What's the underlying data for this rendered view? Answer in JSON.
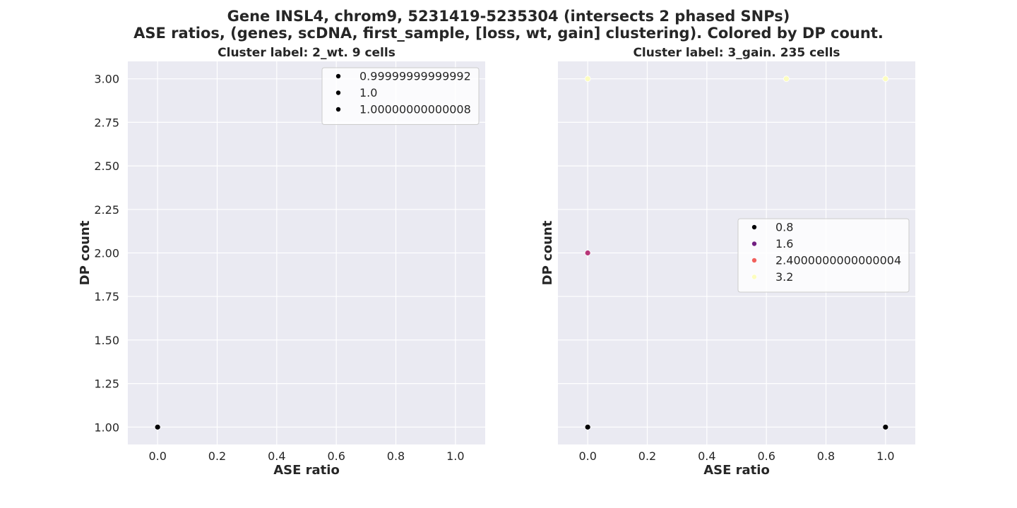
{
  "figure": {
    "title_line1": "Gene INSL4, chrom9, 5231419-5235304 (intersects 2 phased SNPs)",
    "title_line2": "ASE ratios, (genes, scDNA, first_sample, [loss, wt, gain] clustering). Colored by DP count."
  },
  "chart_data": [
    {
      "type": "scatter",
      "title": "Cluster label: 2_wt. 9 cells",
      "xlabel": "ASE ratio",
      "ylabel": "DP count",
      "xlim": [
        -0.1,
        1.1
      ],
      "ylim": [
        0.9,
        3.1
      ],
      "xticks": [
        "0.0",
        "0.2",
        "0.4",
        "0.6",
        "0.8",
        "1.0"
      ],
      "yticks": [
        "1.00",
        "1.25",
        "1.50",
        "1.75",
        "2.00",
        "2.25",
        "2.50",
        "2.75",
        "3.00"
      ],
      "grid": true,
      "legend_position": "upper right",
      "legend": [
        {
          "label": "0.99999999999992",
          "color": "#000004"
        },
        {
          "label": "1.0",
          "color": "#000004"
        },
        {
          "label": "1.00000000000008",
          "color": "#000004"
        }
      ],
      "points": [
        {
          "x": 0.0,
          "y": 1.0,
          "color": "#000004"
        }
      ]
    },
    {
      "type": "scatter",
      "title": "Cluster label: 3_gain. 235 cells",
      "xlabel": "ASE ratio",
      "ylabel": "DP count",
      "xlim": [
        -0.1,
        1.1
      ],
      "ylim": [
        0.9,
        3.1
      ],
      "xticks": [
        "0.0",
        "0.2",
        "0.4",
        "0.6",
        "0.8",
        "1.0"
      ],
      "yticks": [],
      "grid": true,
      "legend_position": "center right",
      "legend": [
        {
          "label": "0.8",
          "color": "#000004"
        },
        {
          "label": "1.6",
          "color": "#711f81"
        },
        {
          "label": "2.4000000000000004",
          "color": "#f1605d"
        },
        {
          "label": "3.2",
          "color": "#fcfdbf"
        }
      ],
      "points": [
        {
          "x": 0.0,
          "y": 3.0,
          "color": "#fcfdbf"
        },
        {
          "x": 0.667,
          "y": 3.0,
          "color": "#fcfdbf"
        },
        {
          "x": 1.0,
          "y": 3.0,
          "color": "#fcfdbf"
        },
        {
          "x": 0.0,
          "y": 2.0,
          "color": "#b73779"
        },
        {
          "x": 0.0,
          "y": 1.0,
          "color": "#000004"
        },
        {
          "x": 1.0,
          "y": 1.0,
          "color": "#000004"
        }
      ]
    }
  ]
}
